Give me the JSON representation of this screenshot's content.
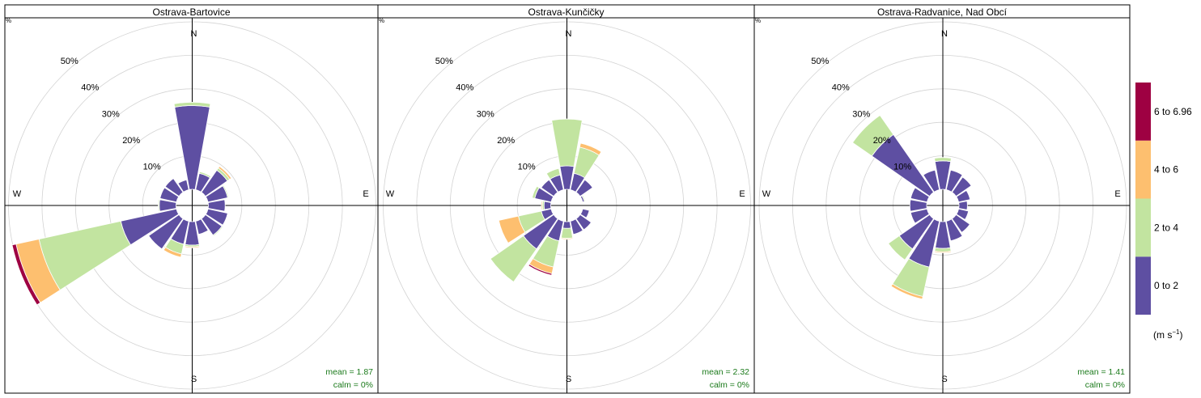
{
  "legend": {
    "bins": [
      "0 to 2",
      "2 to 4",
      "4 to 6",
      "6 to 6.96"
    ],
    "colors": [
      "#5E4FA2",
      "#C2E4A0",
      "#FDBF6F",
      "#9E0142"
    ],
    "unit_base": "(m s",
    "unit_exp": "−1",
    "unit_close": ")"
  },
  "chart_data": [
    {
      "type": "windrose",
      "title": "Ostrava-Bartovice",
      "mean_label": "mean = 1.87",
      "calm_label": "calm = 0%",
      "directions": [
        "N",
        "NNE",
        "NE",
        "ENE",
        "E",
        "ESE",
        "SE",
        "SSE",
        "S",
        "SSW",
        "SW",
        "WSW",
        "W",
        "WNW",
        "NW",
        "NNW"
      ],
      "ring_labels": [
        "10%",
        "20%",
        "30%",
        "40%",
        "50%"
      ],
      "rmax": 50,
      "frequencies": [
        [
          25.0,
          1.0,
          0.0,
          0.0
        ],
        [
          5.0,
          0.5,
          0.0,
          0.0
        ],
        [
          8.0,
          0.8,
          0.6,
          0.0
        ],
        [
          6.0,
          0.3,
          0.0,
          0.0
        ],
        [
          5.0,
          0.0,
          0.0,
          0.0
        ],
        [
          6.0,
          0.0,
          0.0,
          0.0
        ],
        [
          6.0,
          0.3,
          0.0,
          0.0
        ],
        [
          4.0,
          0.0,
          0.0,
          0.0
        ],
        [
          7.0,
          0.5,
          0.3,
          0.0
        ],
        [
          7.0,
          3.0,
          1.0,
          0.0
        ],
        [
          11.0,
          0.0,
          0.0,
          0.0
        ],
        [
          17.0,
          25.0,
          7.0,
          1.2
        ],
        [
          5.0,
          0.3,
          0.0,
          0.0
        ],
        [
          5.0,
          0.0,
          0.0,
          0.0
        ],
        [
          5.0,
          0.0,
          0.0,
          0.0
        ],
        [
          3.0,
          0.0,
          0.0,
          0.0
        ]
      ]
    },
    {
      "type": "windrose",
      "title": "Ostrava-Kunčičky",
      "mean_label": "mean = 2.32",
      "calm_label": "calm = 0%",
      "directions": [
        "N",
        "NNE",
        "NE",
        "ENE",
        "E",
        "ESE",
        "SE",
        "SSE",
        "S",
        "SSW",
        "SW",
        "WSW",
        "W",
        "WNW",
        "NW",
        "NNW"
      ],
      "ring_labels": [
        "10%",
        "20%",
        "30%",
        "40%",
        "50%"
      ],
      "rmax": 50,
      "frequencies": [
        [
          7.0,
          14.0,
          0.0,
          0.0
        ],
        [
          5.0,
          8.0,
          1.2,
          0.0
        ],
        [
          4.5,
          0.0,
          0.0,
          0.0
        ],
        [
          0.5,
          0.3,
          0.0,
          0.0
        ],
        [
          0.0,
          0.0,
          0.0,
          0.0
        ],
        [
          2.0,
          0.0,
          0.0,
          0.0
        ],
        [
          4.0,
          0.0,
          0.0,
          0.0
        ],
        [
          4.0,
          0.0,
          0.0,
          0.0
        ],
        [
          2.0,
          3.0,
          0.3,
          0.0
        ],
        [
          6.0,
          8.0,
          2.0,
          0.5
        ],
        [
          11.0,
          12.0,
          0.0,
          0.0
        ],
        [
          3.0,
          7.0,
          6.0,
          0.0
        ],
        [
          2.0,
          0.5,
          0.3,
          0.0
        ],
        [
          5.0,
          0.8,
          0.0,
          0.0
        ],
        [
          4.5,
          0.0,
          0.0,
          0.0
        ],
        [
          4.5,
          2.0,
          0.0,
          0.0
        ]
      ]
    },
    {
      "type": "windrose",
      "title": "Ostrava-Radvanice, Nad Obcí",
      "mean_label": "mean = 1.41",
      "calm_label": "calm = 0%",
      "directions": [
        "N",
        "NNE",
        "NE",
        "ENE",
        "E",
        "ESE",
        "SE",
        "SSE",
        "S",
        "SSW",
        "SW",
        "WSW",
        "W",
        "WNW",
        "NW",
        "NNW"
      ],
      "ring_labels": [
        "10%",
        "20%",
        "30%",
        "40%",
        "50%"
      ],
      "rmax": 50,
      "frequencies": [
        [
          8.5,
          1.0,
          0.0,
          0.0
        ],
        [
          6.0,
          0.0,
          0.0,
          0.0
        ],
        [
          5.5,
          0.0,
          0.0,
          0.0
        ],
        [
          3.5,
          0.0,
          0.0,
          0.0
        ],
        [
          2.5,
          0.0,
          0.0,
          0.0
        ],
        [
          3.0,
          0.0,
          0.0,
          0.0
        ],
        [
          5.0,
          0.0,
          0.0,
          0.0
        ],
        [
          6.0,
          0.0,
          0.0,
          0.0
        ],
        [
          8.0,
          1.0,
          0.3,
          0.0
        ],
        [
          14.0,
          9.0,
          0.8,
          0.0
        ],
        [
          11.0,
          4.0,
          0.0,
          0.0
        ],
        [
          5.0,
          0.0,
          0.0,
          0.0
        ],
        [
          5.0,
          0.0,
          0.0,
          0.0
        ],
        [
          5.0,
          0.0,
          0.0,
          0.0
        ],
        [
          21.0,
          7.0,
          0.0,
          0.0
        ],
        [
          6.0,
          0.0,
          0.0,
          0.0
        ]
      ]
    }
  ]
}
